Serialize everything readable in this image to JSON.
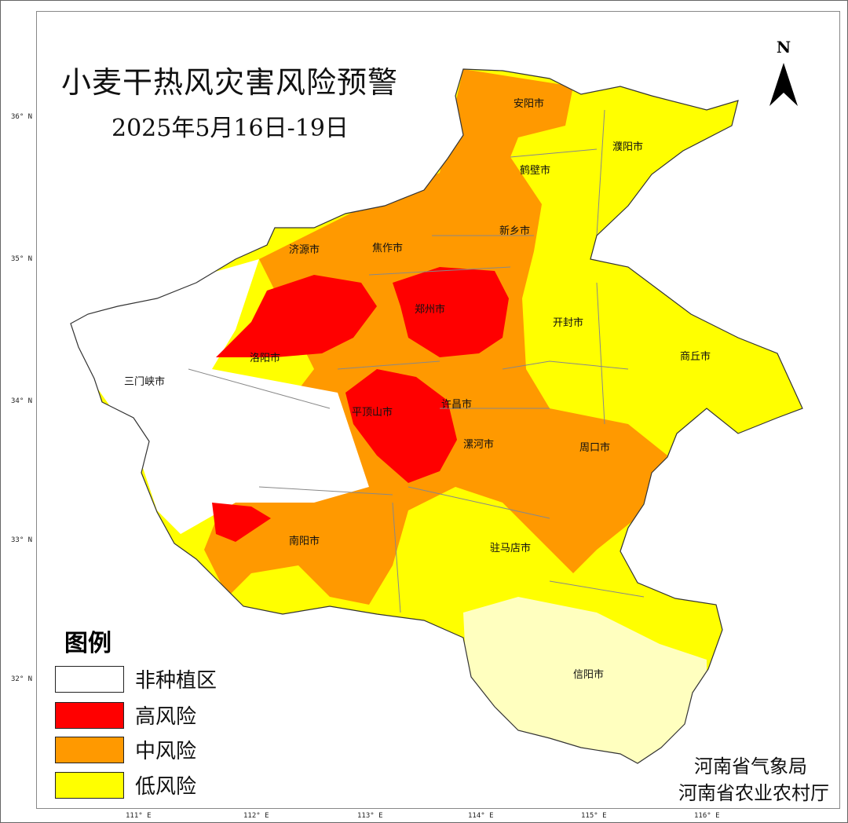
{
  "title": "小麦干热风灾害风险预警",
  "subtitle": "2025年5月16日-19日",
  "north_label": "N",
  "latitude_ticks": [
    "36° N",
    "35° N",
    "34° N",
    "33° N",
    "32° N"
  ],
  "longitude_ticks": [
    "111° E",
    "112° E",
    "113° E",
    "114° E",
    "115° E",
    "116° E"
  ],
  "cities": [
    "安阳市",
    "濮阳市",
    "鹤壁市",
    "新乡市",
    "焦作市",
    "济源市",
    "郑州市",
    "开封市",
    "商丘市",
    "洛阳市",
    "三门峡市",
    "平顶山市",
    "许昌市",
    "漯河市",
    "周口市",
    "南阳市",
    "驻马店市",
    "信阳市"
  ],
  "legend": {
    "title": "图例",
    "items": [
      {
        "label": "非种植区",
        "color": "#ffffff"
      },
      {
        "label": "高风险",
        "color": "#ff0000"
      },
      {
        "label": "中风险",
        "color": "#ff9900"
      },
      {
        "label": "低风险",
        "color": "#ffff00"
      }
    ]
  },
  "credits": [
    "河南省气象局",
    "河南省农业农村厅"
  ]
}
